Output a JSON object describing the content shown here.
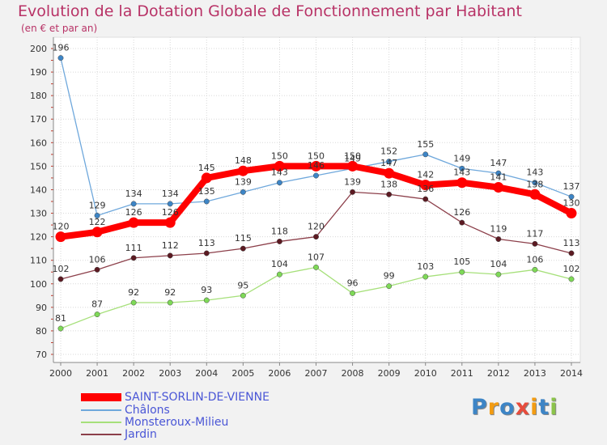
{
  "chart_data": {
    "type": "line",
    "title": "Evolution de la Dotation Globale de Fonctionnement par Habitant",
    "subtitle": "(en € et par an)",
    "categories": [
      "2000",
      "2001",
      "2002",
      "2003",
      "2004",
      "2005",
      "2006",
      "2007",
      "2008",
      "2009",
      "2010",
      "2011",
      "2012",
      "2013",
      "2014"
    ],
    "ylim": [
      70,
      200
    ],
    "yticks": [
      70,
      80,
      90,
      100,
      110,
      120,
      130,
      140,
      150,
      160,
      170,
      180,
      190,
      200
    ],
    "ytick_labels": [
      "70",
      "80",
      "90",
      "100",
      "110",
      "120",
      "130",
      "140",
      "150",
      "160",
      "170",
      "180",
      "190",
      "200"
    ],
    "grid": true,
    "legend_position": "bottom-left",
    "series": [
      {
        "name": "SAINT-SORLIN-DE-VIENNE",
        "color": "#ff0000",
        "emphasis": true,
        "values": [
          120,
          122,
          126,
          126,
          145,
          148,
          150,
          150,
          150,
          147,
          142,
          143,
          141,
          138,
          130
        ]
      },
      {
        "name": "Châlons",
        "color": "#6fa8dc",
        "marker_color": "#3d85c6",
        "emphasis": false,
        "values": [
          196,
          129,
          134,
          134,
          135,
          139,
          143,
          146,
          149,
          152,
          155,
          149,
          147,
          143,
          137
        ]
      },
      {
        "name": "Monsteroux-Milieu",
        "color": "#a6e07a",
        "marker_color": "#7ed957",
        "emphasis": false,
        "values": [
          81,
          87,
          92,
          92,
          93,
          95,
          104,
          107,
          96,
          99,
          103,
          105,
          104,
          106,
          102
        ]
      },
      {
        "name": "Jardin",
        "color": "#8c3f4a",
        "marker_color": "#5c1a22",
        "emphasis": false,
        "values": [
          102,
          106,
          111,
          112,
          113,
          115,
          118,
          120,
          139,
          138,
          136,
          126,
          119,
          117,
          113
        ]
      }
    ],
    "data_labels": {
      "SAINT-SORLIN-DE-VIENNE": [
        "120",
        "122",
        "126",
        "126",
        "145",
        "148",
        "150",
        "150",
        "150",
        "147",
        "142",
        "143",
        "141",
        "138",
        "130"
      ],
      "Châlons": [
        "196",
        "129",
        "134",
        "134",
        "135",
        "139",
        "143",
        "146",
        "149",
        "152",
        "155",
        "149",
        "147",
        "143",
        "137"
      ],
      "Monsteroux-Milieu": [
        "81",
        "87",
        "92",
        "92",
        "93",
        "95",
        "104",
        "107",
        "96",
        "99",
        "103",
        "105",
        "104",
        "106",
        "102"
      ],
      "Jardin": [
        "102",
        "106",
        "111",
        "112",
        "113",
        "115",
        "118",
        "120",
        "139",
        "138",
        "136",
        "126",
        "119",
        "117",
        "113"
      ]
    }
  },
  "legend": {
    "items": [
      {
        "label": "SAINT-SORLIN-DE-VIENNE",
        "color": "#ff0000",
        "text_color": "#4a56d6"
      },
      {
        "label": "Châlons",
        "color": "#6fa8dc",
        "text_color": "#4a56d6"
      },
      {
        "label": "Monsteroux-Milieu",
        "color": "#a6e07a",
        "text_color": "#4a56d6"
      },
      {
        "label": "Jardin",
        "color": "#8c3f4a",
        "text_color": "#4a56d6"
      }
    ]
  },
  "logo": {
    "letters": [
      "P",
      "r",
      "o",
      "x",
      "i",
      "t",
      "i"
    ],
    "colors": [
      "#3d85c6",
      "#f39c12",
      "#3d85c6",
      "#e74c3c",
      "#f39c12",
      "#3d85c6",
      "#8bc34a"
    ]
  }
}
